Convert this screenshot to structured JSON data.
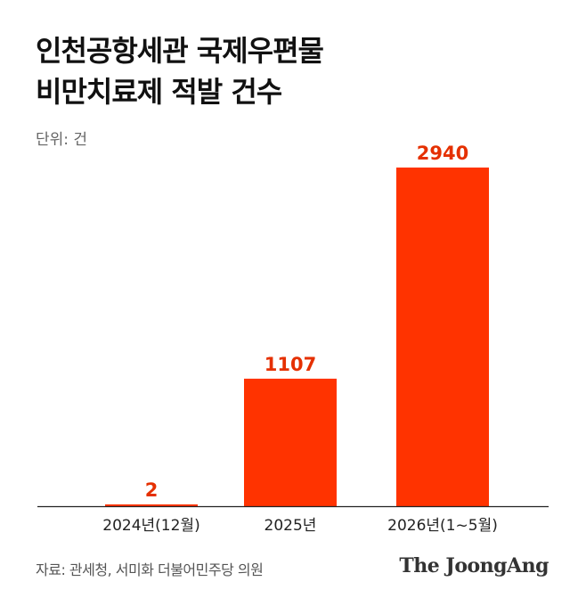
{
  "header": {
    "title_line1": "인천공항세관 국제우편물",
    "title_line2": "비만치료제 적발 건수",
    "unit": "단위: 건"
  },
  "footer": {
    "source": "자료: 관세청, 서미화 더불어민주당 의원",
    "brand": "The JoongAng"
  },
  "colors": {
    "bar": "#ff3300",
    "label": "#e53000",
    "axis": "#222222"
  },
  "chart_data": {
    "type": "bar",
    "title": "인천공항세관 국제우편물 비만치료제 적발 건수",
    "ylabel": "단위: 건",
    "categories": [
      "2024년(12월)",
      "2025년",
      "2026년(1~5월)"
    ],
    "values": [
      2,
      1107,
      2940
    ],
    "ylim": [
      0,
      2940
    ],
    "grid": false,
    "legend": "none"
  }
}
